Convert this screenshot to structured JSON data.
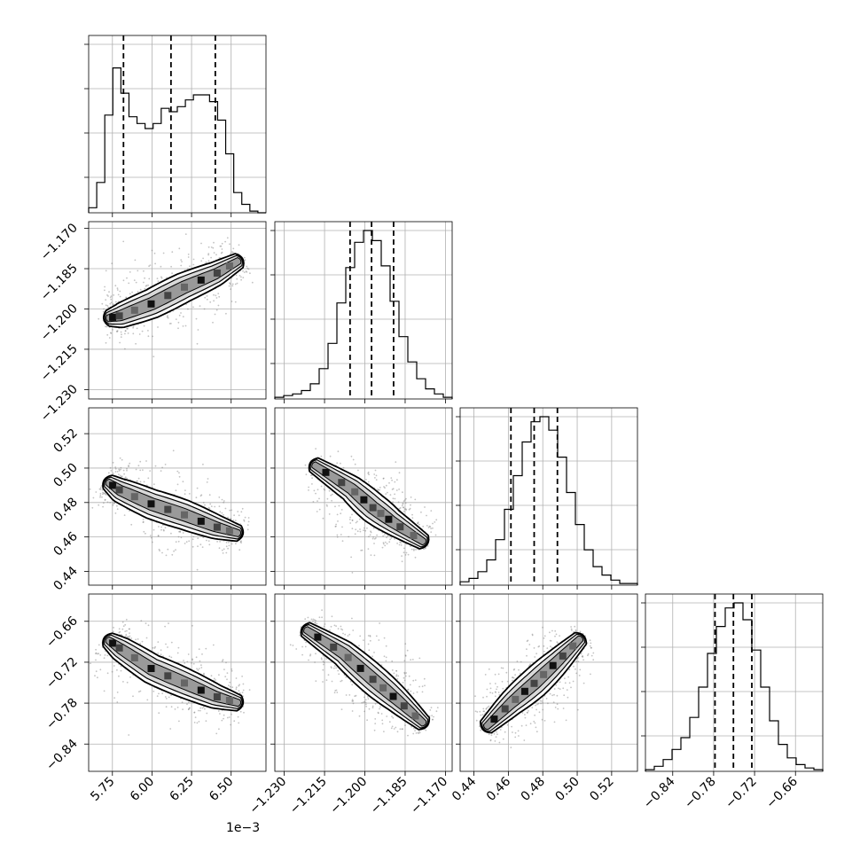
{
  "chart_data": {
    "type": "corner",
    "offset_text": "1e−3",
    "params": [
      {
        "range": [
          5.6,
          6.72
        ],
        "ticks": [
          5.75,
          6.0,
          6.25,
          6.5
        ],
        "tick_labels": [
          "5.75",
          "6.00",
          "6.25",
          "6.50"
        ],
        "quantiles": [
          5.82,
          6.12,
          6.4
        ]
      },
      {
        "range": [
          -1.2335,
          -1.1675
        ],
        "ticks": [
          -1.23,
          -1.215,
          -1.2,
          -1.185,
          -1.17
        ],
        "tick_labels": [
          "−1.230",
          "−1.215",
          "−1.200",
          "−1.185",
          "−1.170"
        ],
        "quantiles": [
          -1.2055,
          -1.1975,
          -1.1893
        ]
      },
      {
        "range": [
          0.432,
          0.535
        ],
        "ticks": [
          0.44,
          0.46,
          0.48,
          0.5,
          0.52
        ],
        "tick_labels": [
          "0.44",
          "0.46",
          "0.48",
          "0.50",
          "0.52"
        ],
        "quantiles": [
          0.4615,
          0.475,
          0.4885
        ]
      },
      {
        "range": [
          -0.88,
          -0.62
        ],
        "ticks": [
          -0.84,
          -0.78,
          -0.72,
          -0.66
        ],
        "tick_labels": [
          "−0.84",
          "−0.78",
          "−0.72",
          "−0.66"
        ],
        "quantiles": [
          -0.778,
          -0.751,
          -0.724
        ]
      }
    ],
    "histograms": [
      [
        0.03,
        0.18,
        0.58,
        0.86,
        0.71,
        0.57,
        0.53,
        0.5,
        0.53,
        0.62,
        0.6,
        0.63,
        0.67,
        0.7,
        0.7,
        0.66,
        0.55,
        0.35,
        0.12,
        0.05,
        0.01,
        0.0
      ],
      [
        0.01,
        0.02,
        0.03,
        0.05,
        0.09,
        0.18,
        0.33,
        0.57,
        0.78,
        0.93,
        1.0,
        0.94,
        0.79,
        0.58,
        0.37,
        0.22,
        0.12,
        0.06,
        0.03,
        0.01
      ],
      [
        0.02,
        0.04,
        0.08,
        0.15,
        0.27,
        0.45,
        0.65,
        0.85,
        0.97,
        1.0,
        0.92,
        0.76,
        0.55,
        0.36,
        0.21,
        0.11,
        0.06,
        0.03,
        0.01,
        0.01
      ],
      [
        0.01,
        0.03,
        0.07,
        0.13,
        0.2,
        0.32,
        0.5,
        0.7,
        0.86,
        0.97,
        1.0,
        0.9,
        0.72,
        0.5,
        0.3,
        0.16,
        0.08,
        0.04,
        0.02,
        0.01
      ]
    ],
    "pairs": [
      {
        "x": 0,
        "y": 1,
        "ridge": [
          [
            5.72,
            -1.2035
          ],
          [
            5.8,
            -1.2025
          ],
          [
            6.0,
            -1.198
          ],
          [
            6.2,
            -1.192
          ],
          [
            6.4,
            -1.187
          ],
          [
            6.55,
            -1.182
          ]
        ]
      },
      {
        "x": 0,
        "y": 2,
        "ridge": [
          [
            5.72,
            0.492
          ],
          [
            5.8,
            0.487
          ],
          [
            6.0,
            0.479
          ],
          [
            6.2,
            0.473
          ],
          [
            6.4,
            0.466
          ],
          [
            6.55,
            0.462
          ]
        ]
      },
      {
        "x": 0,
        "y": 3,
        "ridge": [
          [
            5.72,
            -0.687
          ],
          [
            5.8,
            -0.7
          ],
          [
            6.0,
            -0.73
          ],
          [
            6.2,
            -0.75
          ],
          [
            6.4,
            -0.77
          ],
          [
            6.55,
            -0.78
          ]
        ]
      },
      {
        "x": 1,
        "y": 2,
        "ridge": [
          [
            -1.219,
            0.502
          ],
          [
            -1.205,
            0.488
          ],
          [
            -1.197,
            0.477
          ],
          [
            -1.19,
            0.469
          ],
          [
            -1.178,
            0.457
          ]
        ]
      },
      {
        "x": 1,
        "y": 3,
        "ridge": [
          [
            -1.222,
            -0.672
          ],
          [
            -1.208,
            -0.707
          ],
          [
            -1.197,
            -0.745
          ],
          [
            -1.188,
            -0.775
          ],
          [
            -1.178,
            -0.81
          ]
        ]
      },
      {
        "x": 2,
        "y": 3,
        "ridge": [
          [
            0.447,
            -0.815
          ],
          [
            0.462,
            -0.779
          ],
          [
            0.475,
            -0.751
          ],
          [
            0.488,
            -0.72
          ],
          [
            0.502,
            -0.685
          ]
        ]
      }
    ]
  }
}
